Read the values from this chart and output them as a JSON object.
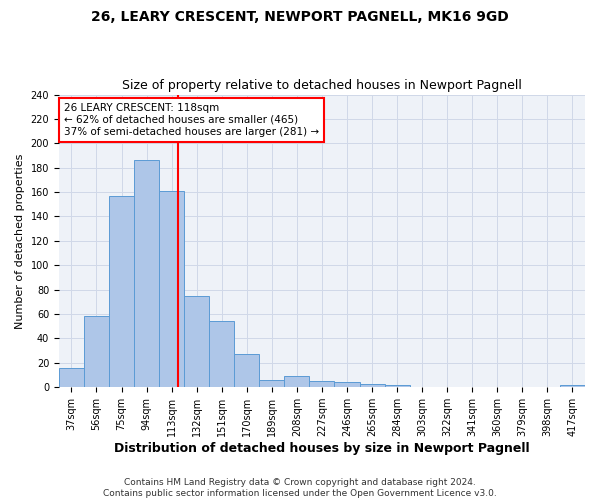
{
  "title_line1": "26, LEARY CRESCENT, NEWPORT PAGNELL, MK16 9GD",
  "title_line2": "Size of property relative to detached houses in Newport Pagnell",
  "xlabel": "Distribution of detached houses by size in Newport Pagnell",
  "ylabel": "Number of detached properties",
  "bar_labels": [
    "37sqm",
    "56sqm",
    "75sqm",
    "94sqm",
    "113sqm",
    "132sqm",
    "151sqm",
    "170sqm",
    "189sqm",
    "208sqm",
    "227sqm",
    "246sqm",
    "265sqm",
    "284sqm",
    "303sqm",
    "322sqm",
    "341sqm",
    "360sqm",
    "379sqm",
    "398sqm",
    "417sqm"
  ],
  "bar_values": [
    16,
    58,
    157,
    186,
    161,
    75,
    54,
    27,
    6,
    9,
    5,
    4,
    3,
    2,
    0,
    0,
    0,
    0,
    0,
    0,
    2
  ],
  "bar_color": "#aec6e8",
  "bar_edge_color": "#5b9bd5",
  "grid_color": "#d0d8e8",
  "background_color": "#eef2f8",
  "vline_x": 4.27,
  "vline_color": "red",
  "annotation_text": "26 LEARY CRESCENT: 118sqm\n← 62% of detached houses are smaller (465)\n37% of semi-detached houses are larger (281) →",
  "annotation_box_color": "red",
  "ylim": [
    0,
    240
  ],
  "yticks": [
    0,
    20,
    40,
    60,
    80,
    100,
    120,
    140,
    160,
    180,
    200,
    220,
    240
  ],
  "footer_text": "Contains HM Land Registry data © Crown copyright and database right 2024.\nContains public sector information licensed under the Open Government Licence v3.0.",
  "title_fontsize": 10,
  "subtitle_fontsize": 9,
  "xlabel_fontsize": 9,
  "ylabel_fontsize": 8,
  "tick_fontsize": 7,
  "annotation_fontsize": 7.5,
  "footer_fontsize": 6.5
}
